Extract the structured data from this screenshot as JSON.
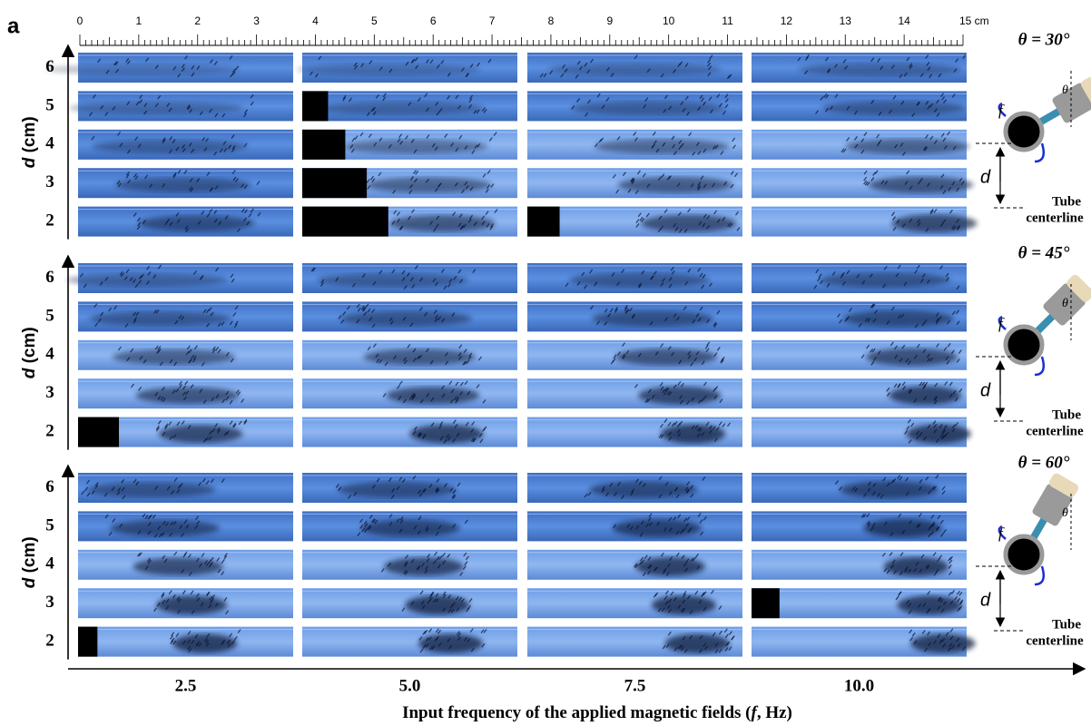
{
  "panel_label": "a",
  "ruler": {
    "labels": [
      "0",
      "1",
      "2",
      "3",
      "4",
      "5",
      "6",
      "7",
      "8",
      "9",
      "10",
      "11",
      "12",
      "13",
      "14",
      "15 cm"
    ]
  },
  "y_axis_title": {
    "symbol": "d",
    "unit": "(cm)"
  },
  "groups": [
    {
      "theta_label": "θ = 30°",
      "rows": [
        "6",
        "5",
        "4",
        "3",
        "2"
      ],
      "diagram": {
        "f": "f",
        "theta": "θ",
        "d": "d",
        "tube": "Tube",
        "centerline": "centerline"
      }
    },
    {
      "theta_label": "θ = 45°",
      "rows": [
        "6",
        "5",
        "4",
        "3",
        "2"
      ],
      "diagram": {
        "f": "f",
        "theta": "θ",
        "d": "d",
        "tube": "Tube",
        "centerline": "centerline"
      }
    },
    {
      "theta_label": "θ = 60°",
      "rows": [
        "6",
        "5",
        "4",
        "3",
        "2"
      ],
      "diagram": {
        "f": "f",
        "theta": "θ",
        "d": "d",
        "tube": "Tube",
        "centerline": "centerline"
      }
    }
  ],
  "x_axis": {
    "categories": [
      "2.5",
      "5.0",
      "7.5",
      "10.0"
    ],
    "title": {
      "before": "Input frequency of the applied magnetic fields (",
      "symbol": "f",
      "after": ",  Hz)"
    }
  }
}
